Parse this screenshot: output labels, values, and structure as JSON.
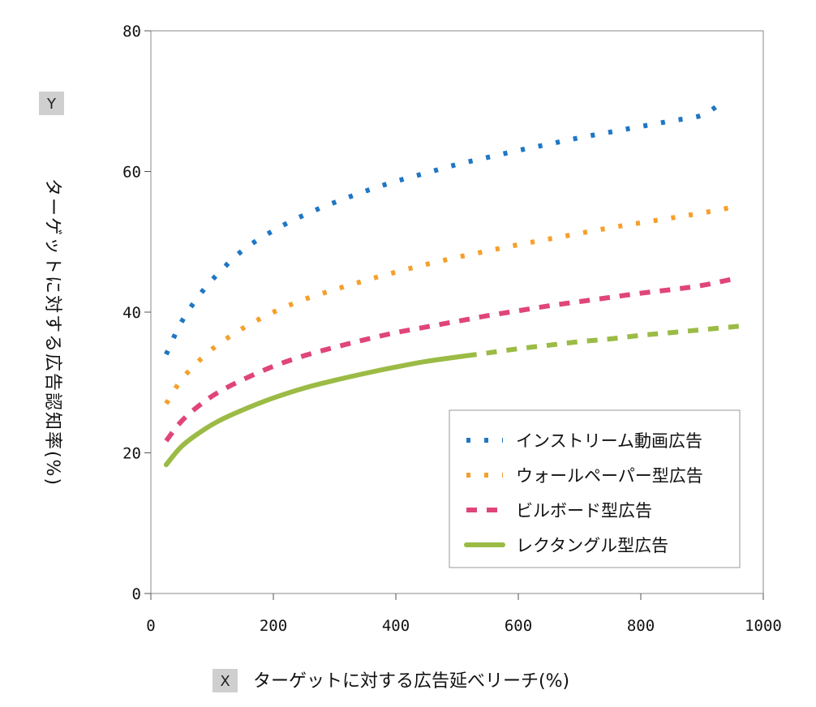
{
  "chart_data": {
    "type": "line",
    "x_axis": {
      "tag": "X",
      "label": "ターゲットに対する広告延べリーチ(%)",
      "ticks": [
        0,
        200,
        400,
        600,
        800,
        1000
      ],
      "tick_labels": [
        "0",
        "200",
        "400",
        "600",
        "800",
        "1000"
      ],
      "range": [
        0,
        1000
      ]
    },
    "y_axis": {
      "tag": "Y",
      "label": "ターゲットに対する広告認知率(%)",
      "ticks": [
        0,
        20,
        40,
        60,
        80
      ],
      "tick_labels": [
        "0",
        "20",
        "40",
        "60",
        "80"
      ],
      "range": [
        0,
        80
      ]
    },
    "grid": false,
    "legend_position": "bottom-right",
    "series": [
      {
        "name": "インストリーム動画広告",
        "color": "#1f77c4",
        "style": "dotted",
        "x": [
          25,
          50,
          80,
          110,
          150,
          200,
          250,
          300,
          350,
          400,
          450,
          500,
          550,
          600,
          650,
          700,
          750,
          800,
          850,
          900,
          935
        ],
        "y": [
          34,
          38.6,
          42.5,
          45.5,
          48.8,
          51.6,
          53.8,
          55.6,
          57.2,
          58.6,
          59.8,
          61,
          62,
          63,
          63.9,
          64.8,
          65.6,
          66.4,
          67.2,
          68,
          70
        ]
      },
      {
        "name": "ウォールペーパー型広告",
        "color": "#f5a02a",
        "style": "dotted",
        "x": [
          25,
          50,
          80,
          110,
          150,
          200,
          250,
          300,
          350,
          400,
          450,
          500,
          550,
          600,
          650,
          700,
          750,
          800,
          850,
          900,
          955
        ],
        "y": [
          27,
          30.4,
          33.2,
          35.4,
          37.7,
          40,
          41.8,
          43.2,
          44.5,
          45.7,
          46.8,
          47.8,
          48.7,
          49.6,
          50.4,
          51.2,
          52,
          52.7,
          53.4,
          54.1,
          55
        ]
      },
      {
        "name": "ビルボード型広告",
        "color": "#e0457a",
        "style": "dashed",
        "x": [
          25,
          50,
          80,
          110,
          150,
          200,
          250,
          300,
          350,
          400,
          450,
          500,
          550,
          600,
          650,
          700,
          750,
          800,
          850,
          900,
          955
        ],
        "y": [
          21.7,
          24.5,
          26.8,
          28.6,
          30.4,
          32.3,
          33.8,
          35,
          36.1,
          37.1,
          37.9,
          38.7,
          39.5,
          40.2,
          40.9,
          41.5,
          42.1,
          42.7,
          43.2,
          43.8,
          44.8
        ]
      },
      {
        "name": "レクタングル型広告",
        "color": "#9bbb45",
        "style": "solid",
        "x": [
          25,
          50,
          80,
          110,
          150,
          200,
          250,
          300,
          350,
          400,
          450,
          515
        ],
        "y": [
          18.3,
          20.9,
          22.9,
          24.5,
          26.1,
          27.8,
          29.2,
          30.3,
          31.3,
          32.2,
          33,
          33.8
        ]
      },
      {
        "name": "",
        "color": "#9bbb45",
        "style": "dashed",
        "x": [
          515,
          550,
          600,
          650,
          700,
          750,
          800,
          850,
          900,
          960
        ],
        "y": [
          33.8,
          34.2,
          34.8,
          35.3,
          35.8,
          36.2,
          36.7,
          37.1,
          37.5,
          38
        ]
      }
    ],
    "legend": [
      {
        "label": "インストリーム動画広告",
        "color": "#1f77c4",
        "style": "dotted"
      },
      {
        "label": "ウォールペーパー型広告",
        "color": "#f5a02a",
        "style": "dotted"
      },
      {
        "label": "ビルボード型広告",
        "color": "#e0457a",
        "style": "dashed"
      },
      {
        "label": "レクタングル型広告",
        "color": "#9bbb45",
        "style": "solid"
      }
    ]
  }
}
